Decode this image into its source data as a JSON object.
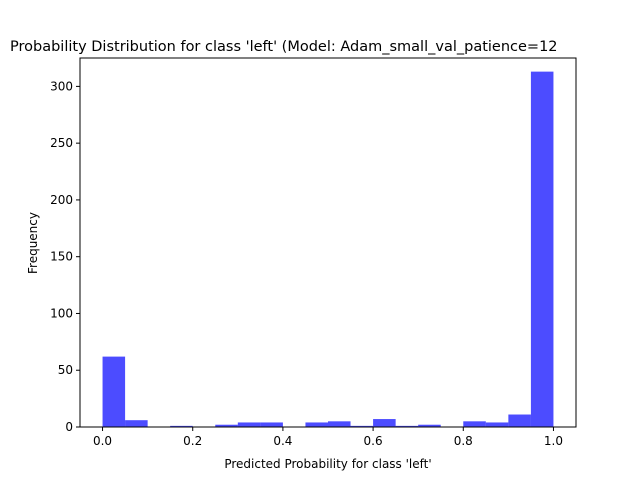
{
  "chart_data": {
    "type": "bar",
    "title": "Probability Distribution for class 'left' (Model: Adam_small_val_patience=12",
    "xlabel": "Predicted Probability for class 'left'",
    "ylabel": "Frequency",
    "xlim": [
      -0.05,
      1.05
    ],
    "ylim": [
      0,
      325
    ],
    "xticks": [
      0.0,
      0.2,
      0.4,
      0.6,
      0.8,
      1.0
    ],
    "xtick_labels": [
      "0.0",
      "0.2",
      "0.4",
      "0.6",
      "0.8",
      "1.0"
    ],
    "yticks": [
      0,
      50,
      100,
      150,
      200,
      250,
      300
    ],
    "ytick_labels": [
      "0",
      "50",
      "100",
      "150",
      "200",
      "250",
      "300"
    ],
    "bar_color": "#0000ff",
    "bar_opacity": 0.7,
    "bins": [
      {
        "start": 0.0,
        "end": 0.05,
        "count": 62
      },
      {
        "start": 0.05,
        "end": 0.1,
        "count": 6
      },
      {
        "start": 0.1,
        "end": 0.15,
        "count": 0
      },
      {
        "start": 0.15,
        "end": 0.2,
        "count": 1
      },
      {
        "start": 0.2,
        "end": 0.25,
        "count": 0
      },
      {
        "start": 0.25,
        "end": 0.3,
        "count": 2
      },
      {
        "start": 0.3,
        "end": 0.35,
        "count": 4
      },
      {
        "start": 0.35,
        "end": 0.4,
        "count": 4
      },
      {
        "start": 0.4,
        "end": 0.45,
        "count": 0
      },
      {
        "start": 0.45,
        "end": 0.5,
        "count": 4
      },
      {
        "start": 0.5,
        "end": 0.55,
        "count": 5
      },
      {
        "start": 0.55,
        "end": 0.6,
        "count": 1
      },
      {
        "start": 0.6,
        "end": 0.65,
        "count": 7
      },
      {
        "start": 0.65,
        "end": 0.7,
        "count": 1
      },
      {
        "start": 0.7,
        "end": 0.75,
        "count": 2
      },
      {
        "start": 0.75,
        "end": 0.8,
        "count": 0
      },
      {
        "start": 0.8,
        "end": 0.85,
        "count": 5
      },
      {
        "start": 0.85,
        "end": 0.9,
        "count": 4
      },
      {
        "start": 0.9,
        "end": 0.95,
        "count": 11
      },
      {
        "start": 0.95,
        "end": 1.0,
        "count": 313
      }
    ]
  }
}
